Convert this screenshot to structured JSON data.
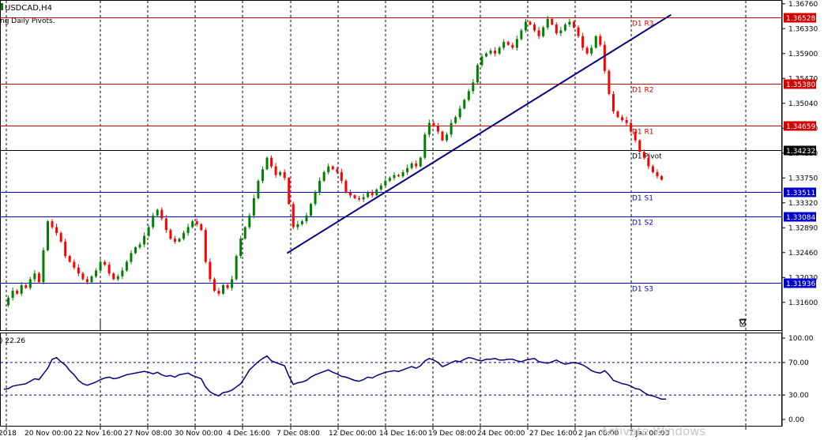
{
  "window": {
    "symbol_label": "USDCAD,H4",
    "indicator_label": "ng Daily Pivots.",
    "oscillator_label": ") 22.26",
    "watermark": "Activate Windows"
  },
  "price_axis": {
    "ticks": [
      "1.36760",
      "1.36330",
      "1.35900",
      "1.35470",
      "1.35040",
      "1.34610",
      "1.34180",
      "1.33750",
      "1.33320",
      "1.32890",
      "1.32460",
      "1.32030",
      "1.31600"
    ]
  },
  "osc_axis": {
    "ticks": [
      "100.00",
      "70.00",
      "30.00",
      "0.00"
    ],
    "levels": [
      70,
      30
    ]
  },
  "time_axis": {
    "labels": [
      "2018",
      "20 Nov 00:00",
      "22 Nov 16:00",
      "27 Nov 08:00",
      "30 Nov 00:00",
      "4 Dec 16:00",
      "7 Dec 08:00",
      "12 Dec 00:00",
      "14 Dec 16:00",
      "19 Dec 08:00",
      "24 Dec 00:00",
      "27 Dec 16:00",
      "2 Jan 08:00",
      "7 Jan 00:00"
    ]
  },
  "pivots": [
    {
      "label": "D1 R3",
      "tag": "1.36528",
      "kind": "resistance",
      "color": "#d00000"
    },
    {
      "label": "D1 R2",
      "tag": "1.35380",
      "kind": "resistance",
      "color": "#d00000"
    },
    {
      "label": "D1 R1",
      "tag": "1.34659",
      "kind": "resistance",
      "color": "#d00000"
    },
    {
      "label": "D1 Pivot",
      "tag": "1.34232",
      "kind": "pivot",
      "color": "#000000"
    },
    {
      "label": "D1 S1",
      "tag": "1.33511",
      "kind": "support",
      "color": "#0000cc"
    },
    {
      "label": "D1 S2",
      "tag": "1.33084",
      "kind": "support",
      "color": "#0000cc"
    },
    {
      "label": "D1 S3",
      "tag": "1.31936",
      "kind": "support",
      "color": "#0000cc"
    }
  ],
  "colors": {
    "bull": "#008000",
    "bear": "#ff0000",
    "trendline": "#000080",
    "oscillator": "#000080",
    "grid": "#000000"
  },
  "chart_data": {
    "type": "candlestick",
    "price_path": [
      1.3155,
      1.3168,
      1.318,
      1.3175,
      1.319,
      1.3185,
      1.32,
      1.321,
      1.3195,
      1.325,
      1.33,
      1.329,
      1.328,
      1.3265,
      1.324,
      1.323,
      1.322,
      1.321,
      1.32,
      1.3195,
      1.3205,
      1.3215,
      1.323,
      1.3225,
      1.321,
      1.32,
      1.3205,
      1.3215,
      1.323,
      1.3245,
      1.3255,
      1.326,
      1.3275,
      1.329,
      1.331,
      1.332,
      1.3305,
      1.3285,
      1.327,
      1.3265,
      1.327,
      1.328,
      1.329,
      1.33,
      1.3295,
      1.3285,
      1.323,
      1.32,
      1.318,
      1.3175,
      1.319,
      1.3185,
      1.32,
      1.324,
      1.327,
      1.329,
      1.331,
      1.334,
      1.337,
      1.339,
      1.341,
      1.3395,
      1.338,
      1.3385,
      1.3375,
      1.333,
      1.329,
      1.3295,
      1.33,
      1.331,
      1.333,
      1.335,
      1.337,
      1.3385,
      1.3395,
      1.339,
      1.3385,
      1.337,
      1.335,
      1.3345,
      1.334,
      1.3338,
      1.3342,
      1.335,
      1.3345,
      1.3355,
      1.3362,
      1.337,
      1.3375,
      1.338,
      1.3378,
      1.3385,
      1.3392,
      1.34,
      1.3395,
      1.341,
      1.345,
      1.347,
      1.3465,
      1.3455,
      1.344,
      1.345,
      1.347,
      1.348,
      1.3495,
      1.351,
      1.3525,
      1.354,
      1.357,
      1.3585,
      1.359,
      1.3595,
      1.359,
      1.36,
      1.361,
      1.3605,
      1.36,
      1.3615,
      1.363,
      1.3645,
      1.364,
      1.363,
      1.362,
      1.3635,
      1.365,
      1.364,
      1.3625,
      1.363,
      1.364,
      1.3645,
      1.3635,
      1.362,
      1.36,
      1.359,
      1.36,
      1.362,
      1.3605,
      1.356,
      1.352,
      1.349,
      1.348,
      1.3475,
      1.347,
      1.3455,
      1.344,
      1.342,
      1.341,
      1.3395,
      1.3385,
      1.3378,
      1.3372
    ],
    "trendline": {
      "start": {
        "bar": 46,
        "price": 1.3245
      },
      "end": {
        "bar": 137,
        "price": 1.3657
      }
    },
    "oscillator_path": [
      37,
      38,
      41,
      42,
      43,
      44,
      47,
      50,
      49,
      56,
      63,
      74,
      76,
      71,
      67,
      60,
      55,
      48,
      44,
      42,
      44,
      46,
      49,
      51,
      52,
      50,
      51,
      53,
      55,
      56,
      57,
      58,
      59,
      58,
      56,
      58,
      55,
      53,
      54,
      52,
      55,
      56,
      57,
      54,
      52,
      50,
      40,
      34,
      31,
      29,
      33,
      34,
      36,
      40,
      44,
      52,
      61,
      66,
      71,
      75,
      78,
      72,
      70,
      68,
      66,
      53,
      43,
      45,
      46,
      48,
      52,
      55,
      57,
      59,
      61,
      58,
      56,
      53,
      52,
      50,
      48,
      47,
      49,
      52,
      51,
      54,
      56,
      58,
      59,
      60,
      59,
      61,
      63,
      65,
      63,
      66,
      72,
      75,
      73,
      70,
      65,
      67,
      70,
      72,
      71,
      74,
      76,
      75,
      73,
      72,
      74,
      74,
      75,
      73,
      73,
      74,
      74,
      72,
      71,
      73,
      74,
      75,
      71,
      70,
      69,
      71,
      73,
      70,
      68,
      69,
      70,
      69,
      67,
      64,
      60,
      58,
      57,
      60,
      55,
      48,
      46,
      44,
      43,
      41,
      38,
      37,
      33,
      30,
      29,
      27,
      25,
      25
    ]
  }
}
